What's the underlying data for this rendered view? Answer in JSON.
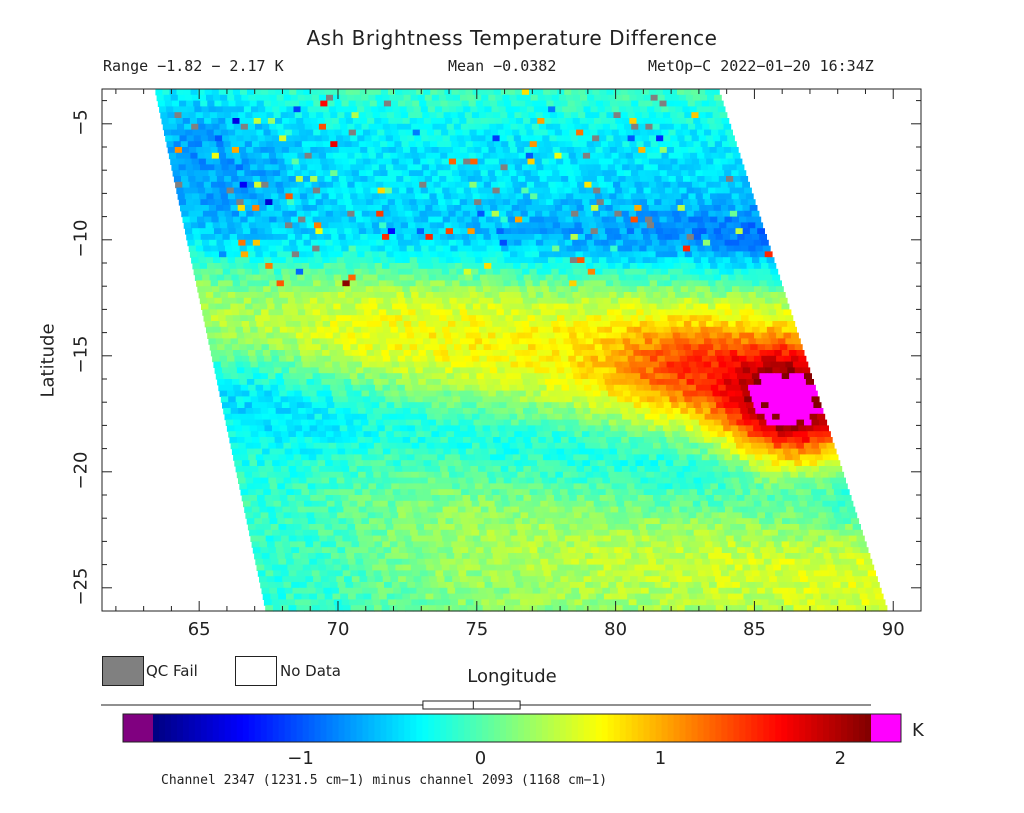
{
  "chart_data": {
    "type": "heatmap",
    "title": "Ash Brightness Temperature Difference",
    "range_text": "Range −1.82 − 2.17 K",
    "mean_text": "Mean −0.0382",
    "source_text": "MetOp−C 2022−01−20 16:34Z",
    "xlabel": "Longitude",
    "ylabel": "Latitude",
    "xlim": [
      61.5,
      91
    ],
    "ylim": [
      -26,
      -3.5
    ],
    "xticks": [
      65,
      70,
      75,
      80,
      85,
      90
    ],
    "yticks": [
      -5,
      -10,
      -15,
      -20,
      -25
    ],
    "xtick_labels": [
      "65",
      "70",
      "75",
      "80",
      "85",
      "90"
    ],
    "ytick_labels": [
      "−5",
      "−10",
      "−15",
      "−20",
      "−25"
    ],
    "swath_corners": {
      "top_left_lon": 63.4,
      "top_right_lon": 83.7,
      "top_lat": -3.5,
      "bottom_left_lon": 67.4,
      "bottom_right_lon": 89.8,
      "bottom_lat": -26
    },
    "features": [
      {
        "name": "low band",
        "lat_center": -10.0,
        "value": -1.0
      },
      {
        "name": "elevated band",
        "lat_center": -14.5,
        "value": 0.5
      },
      {
        "name": "hot spot",
        "lon": 86.5,
        "lat": -17.5,
        "value": 2.17
      },
      {
        "name": "secondary low band",
        "lat_center": -18.0,
        "value": -0.6
      }
    ],
    "colorbar": {
      "min": -1.82,
      "max": 2.17,
      "ticks": [
        -1,
        0,
        1,
        2
      ],
      "tick_labels": [
        "−1",
        "0",
        "1",
        "2"
      ],
      "unit": "K",
      "colors": [
        "#000080",
        "#0000ff",
        "#0080ff",
        "#00ffff",
        "#80ff80",
        "#ffff00",
        "#ff8000",
        "#ff0000",
        "#800000"
      ],
      "under_color": "#800080",
      "over_color": "#ff00ff"
    },
    "legend": [
      {
        "label": "QC Fail",
        "color": "#808080"
      },
      {
        "label": "No Data",
        "color": "#ffffff"
      }
    ],
    "caption": "Channel 2347 (1231.5 cm−1) minus channel 2093 (1168 cm−1)"
  }
}
